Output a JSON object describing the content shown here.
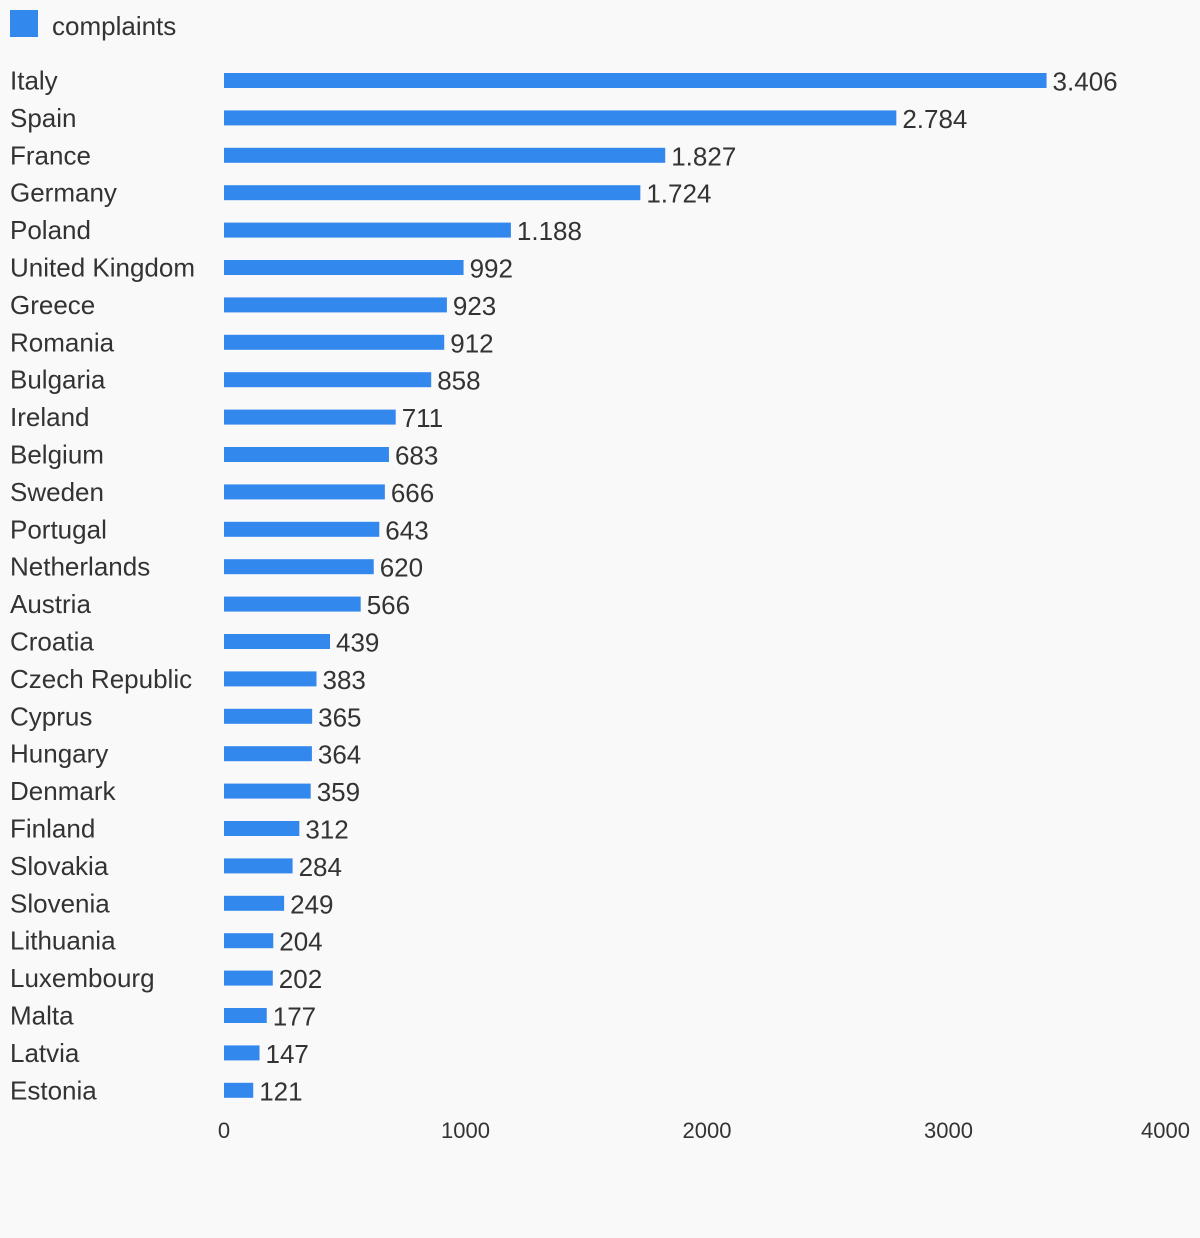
{
  "chart_data": {
    "type": "bar",
    "orientation": "horizontal",
    "categories": [
      "Italy",
      "Spain",
      "France",
      "Germany",
      "Poland",
      "United Kingdom",
      "Greece",
      "Romania",
      "Bulgaria",
      "Ireland",
      "Belgium",
      "Sweden",
      "Portugal",
      "Netherlands",
      "Austria",
      "Croatia",
      "Czech Republic",
      "Cyprus",
      "Hungary",
      "Denmark",
      "Finland",
      "Slovakia",
      "Slovenia",
      "Lithuania",
      "Luxembourg",
      "Malta",
      "Latvia",
      "Estonia"
    ],
    "series": [
      {
        "name": "complaints",
        "color": "#3388ee",
        "values": [
          3406,
          2784,
          1827,
          1724,
          1188,
          992,
          923,
          912,
          858,
          711,
          683,
          666,
          643,
          620,
          566,
          439,
          383,
          365,
          364,
          359,
          312,
          284,
          249,
          204,
          202,
          177,
          147,
          121
        ],
        "value_labels": [
          "3.406",
          "2.784",
          "1.827",
          "1.724",
          "1.188",
          "992",
          "923",
          "912",
          "858",
          "711",
          "683",
          "666",
          "643",
          "620",
          "566",
          "439",
          "383",
          "365",
          "364",
          "359",
          "312",
          "284",
          "249",
          "204",
          "202",
          "177",
          "147",
          "121"
        ]
      }
    ],
    "xlim": [
      0,
      4000
    ],
    "x_ticks": [
      "0",
      "1000",
      "2000",
      "3000",
      "4000"
    ],
    "legend_position": "top-left",
    "grid": false
  }
}
